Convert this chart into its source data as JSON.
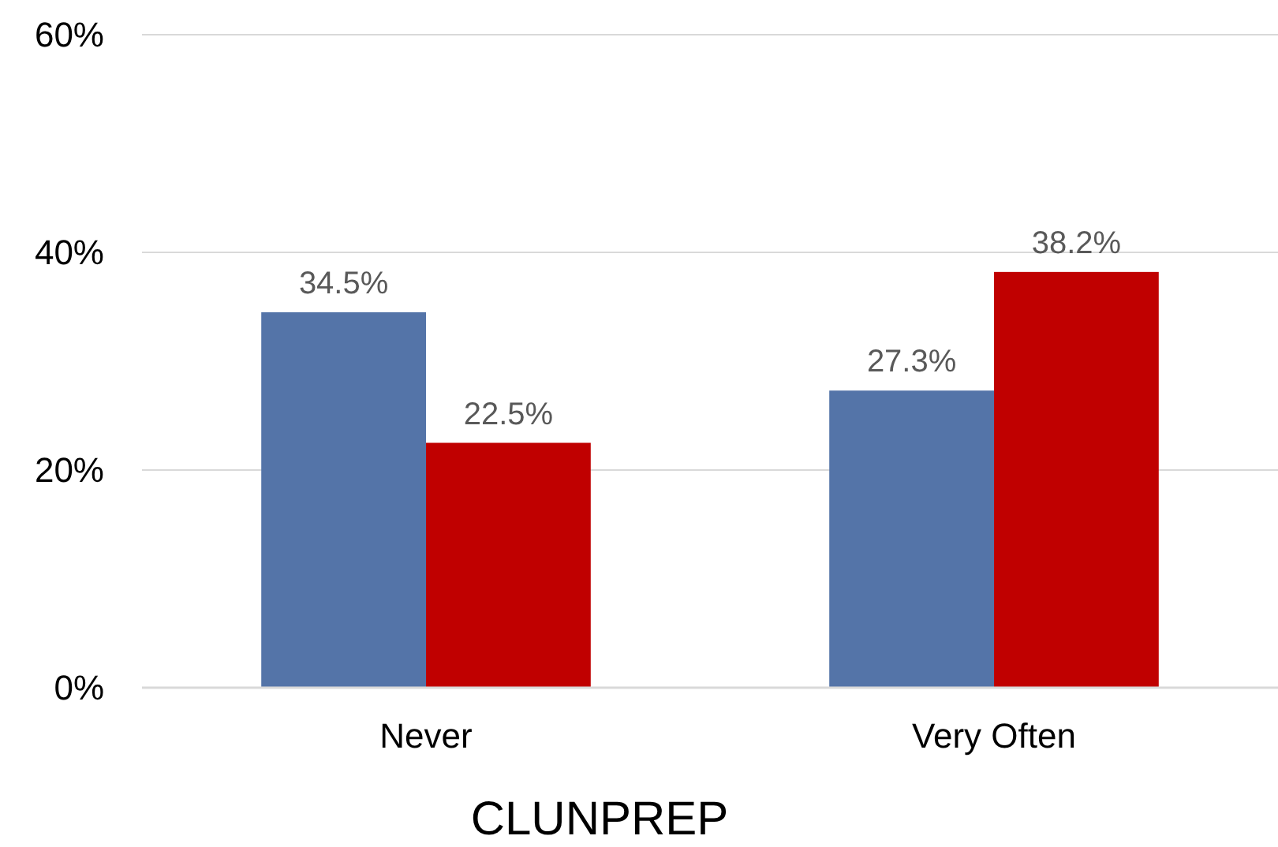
{
  "chart_data": {
    "type": "bar",
    "xlabel": "CLUNPREP",
    "categories": [
      "Never",
      "Very Often"
    ],
    "series": [
      {
        "color": "#5474a8",
        "values": [
          34.5,
          27.3
        ],
        "value_labels": [
          "34.5%",
          "27.3%"
        ]
      },
      {
        "color": "#c00000",
        "values": [
          22.5,
          38.2
        ],
        "value_labels": [
          "22.5%",
          "38.2%"
        ]
      }
    ],
    "ylim": [
      0,
      60
    ],
    "yticks": [
      {
        "value": 0,
        "label": "0%"
      },
      {
        "value": 20,
        "label": "20%"
      },
      {
        "value": 40,
        "label": "40%"
      },
      {
        "value": 60,
        "label": "60%"
      }
    ],
    "grid": "y"
  }
}
